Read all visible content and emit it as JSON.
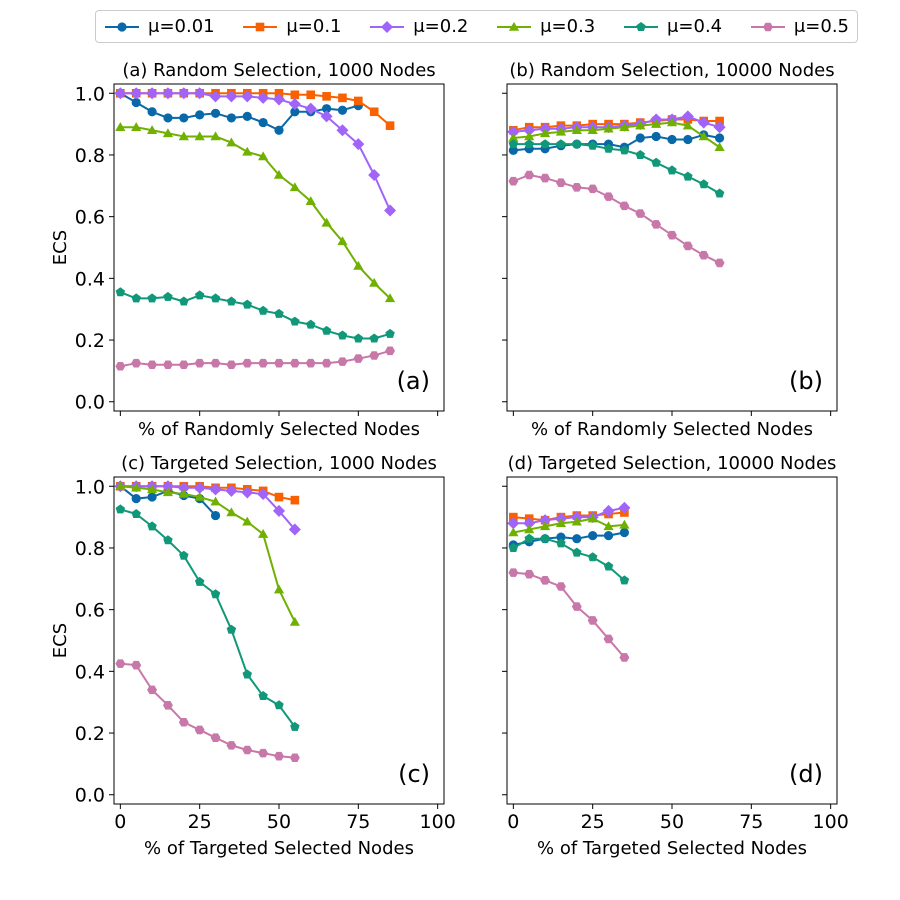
{
  "legend": [
    {
      "label": "μ=0.01",
      "color": "#0868a8",
      "marker": "circle"
    },
    {
      "label": "μ=0.1",
      "color": "#f86000",
      "marker": "square"
    },
    {
      "label": "μ=0.2",
      "color": "#a064f8",
      "marker": "diamond"
    },
    {
      "label": "μ=0.3",
      "color": "#70b000",
      "marker": "triangle"
    },
    {
      "label": "μ=0.4",
      "color": "#109878",
      "marker": "pentagon"
    },
    {
      "label": "μ=0.5",
      "color": "#c878a8",
      "marker": "hexagon"
    }
  ],
  "chart_data": [
    {
      "type": "line",
      "title": "(a) Random Selection, 1000 Nodes",
      "corner_label": "(a)",
      "xlabel": "% of Randomly Selected Nodes",
      "ylabel": "ECS",
      "xlim": [
        -2,
        102
      ],
      "ylim": [
        -0.03,
        1.03
      ],
      "xticks": [
        0,
        25,
        50,
        75,
        100
      ],
      "yticks": [
        0.0,
        0.2,
        0.4,
        0.6,
        0.8,
        1.0
      ],
      "show_xticklabels": false,
      "show_yticklabels": true,
      "series": [
        {
          "x": [
            0,
            5,
            10,
            15,
            20,
            25,
            30,
            35,
            40,
            45,
            50,
            55,
            60,
            65,
            70,
            75
          ],
          "values": [
            1.0,
            0.97,
            0.94,
            0.92,
            0.92,
            0.93,
            0.935,
            0.92,
            0.925,
            0.905,
            0.88,
            0.94,
            0.94,
            0.95,
            0.945,
            0.96
          ]
        },
        {
          "x": [
            0,
            5,
            10,
            15,
            20,
            25,
            30,
            35,
            40,
            45,
            50,
            55,
            60,
            65,
            70,
            75,
            80,
            85
          ],
          "values": [
            1.0,
            1.0,
            1.0,
            1.0,
            1.0,
            1.0,
            1.0,
            1.0,
            1.0,
            1.0,
            1.0,
            0.995,
            0.995,
            0.99,
            0.985,
            0.975,
            0.94,
            0.895
          ]
        },
        {
          "x": [
            0,
            5,
            10,
            15,
            20,
            25,
            30,
            35,
            40,
            45,
            50,
            55,
            60,
            65,
            70,
            75,
            80,
            85
          ],
          "values": [
            1.0,
            1.0,
            1.0,
            1.0,
            1.0,
            1.0,
            0.99,
            0.99,
            0.99,
            0.985,
            0.98,
            0.965,
            0.95,
            0.925,
            0.88,
            0.835,
            0.735,
            0.62
          ]
        },
        {
          "x": [
            0,
            5,
            10,
            15,
            20,
            25,
            30,
            35,
            40,
            45,
            50,
            55,
            60,
            65,
            70,
            75,
            80,
            85
          ],
          "values": [
            0.89,
            0.89,
            0.88,
            0.87,
            0.86,
            0.86,
            0.86,
            0.84,
            0.81,
            0.795,
            0.735,
            0.695,
            0.65,
            0.58,
            0.52,
            0.44,
            0.385,
            0.335
          ]
        },
        {
          "x": [
            0,
            5,
            10,
            15,
            20,
            25,
            30,
            35,
            40,
            45,
            50,
            55,
            60,
            65,
            70,
            75,
            80,
            85
          ],
          "values": [
            0.355,
            0.335,
            0.335,
            0.34,
            0.325,
            0.345,
            0.335,
            0.325,
            0.315,
            0.295,
            0.285,
            0.26,
            0.25,
            0.23,
            0.215,
            0.205,
            0.205,
            0.22
          ]
        },
        {
          "x": [
            0,
            5,
            10,
            15,
            20,
            25,
            30,
            35,
            40,
            45,
            50,
            55,
            60,
            65,
            70,
            75,
            80,
            85
          ],
          "values": [
            0.115,
            0.125,
            0.12,
            0.12,
            0.12,
            0.125,
            0.125,
            0.12,
            0.125,
            0.125,
            0.125,
            0.125,
            0.125,
            0.125,
            0.13,
            0.14,
            0.15,
            0.165
          ]
        }
      ]
    },
    {
      "type": "line",
      "title": "(b) Random Selection, 10000 Nodes",
      "corner_label": "(b)",
      "xlabel": "% of Randomly Selected Nodes",
      "ylabel": "",
      "xlim": [
        -2,
        102
      ],
      "ylim": [
        -0.03,
        1.03
      ],
      "xticks": [
        0,
        25,
        50,
        75,
        100
      ],
      "yticks": [
        0.0,
        0.2,
        0.4,
        0.6,
        0.8,
        1.0
      ],
      "show_xticklabels": false,
      "show_yticklabels": false,
      "series": [
        {
          "x": [
            0,
            5,
            10,
            15,
            20,
            25,
            30,
            35,
            40,
            45,
            50,
            55,
            60,
            65
          ],
          "values": [
            0.815,
            0.82,
            0.82,
            0.83,
            0.835,
            0.835,
            0.835,
            0.825,
            0.855,
            0.86,
            0.85,
            0.85,
            0.865,
            0.855
          ]
        },
        {
          "x": [
            0,
            5,
            10,
            15,
            20,
            25,
            30,
            35,
            40,
            45,
            50,
            55,
            60,
            65
          ],
          "values": [
            0.88,
            0.89,
            0.89,
            0.895,
            0.895,
            0.9,
            0.9,
            0.9,
            0.905,
            0.91,
            0.915,
            0.915,
            0.91,
            0.91
          ]
        },
        {
          "x": [
            0,
            5,
            10,
            15,
            20,
            25,
            30,
            35,
            40,
            45,
            50,
            55,
            60,
            65
          ],
          "values": [
            0.875,
            0.88,
            0.885,
            0.885,
            0.89,
            0.89,
            0.89,
            0.895,
            0.9,
            0.915,
            0.915,
            0.925,
            0.905,
            0.89
          ]
        },
        {
          "x": [
            0,
            5,
            10,
            15,
            20,
            25,
            30,
            35,
            40,
            45,
            50,
            55,
            60,
            65
          ],
          "values": [
            0.855,
            0.86,
            0.87,
            0.875,
            0.88,
            0.88,
            0.885,
            0.89,
            0.895,
            0.9,
            0.905,
            0.895,
            0.86,
            0.825
          ]
        },
        {
          "x": [
            0,
            5,
            10,
            15,
            20,
            25,
            30,
            35,
            40,
            45,
            50,
            55,
            60,
            65
          ],
          "values": [
            0.835,
            0.835,
            0.835,
            0.835,
            0.835,
            0.83,
            0.82,
            0.815,
            0.8,
            0.775,
            0.75,
            0.73,
            0.705,
            0.675
          ]
        },
        {
          "x": [
            0,
            5,
            10,
            15,
            20,
            25,
            30,
            35,
            40,
            45,
            50,
            55,
            60,
            65
          ],
          "values": [
            0.715,
            0.735,
            0.725,
            0.71,
            0.695,
            0.69,
            0.665,
            0.635,
            0.61,
            0.575,
            0.54,
            0.505,
            0.475,
            0.45
          ]
        }
      ]
    },
    {
      "type": "line",
      "title": "(c) Targeted Selection, 1000 Nodes",
      "corner_label": "(c)",
      "xlabel": "% of Targeted Selected Nodes",
      "ylabel": "ECS",
      "xlim": [
        -2,
        102
      ],
      "ylim": [
        -0.03,
        1.03
      ],
      "xticks": [
        0,
        25,
        50,
        75,
        100
      ],
      "yticks": [
        0.0,
        0.2,
        0.4,
        0.6,
        0.8,
        1.0
      ],
      "show_xticklabels": true,
      "show_yticklabels": true,
      "series": [
        {
          "x": [
            0,
            5,
            10,
            15,
            20,
            25,
            30
          ],
          "values": [
            1.0,
            0.96,
            0.965,
            0.985,
            0.97,
            0.96,
            0.905
          ]
        },
        {
          "x": [
            0,
            5,
            10,
            15,
            20,
            25,
            30,
            35,
            40,
            45,
            50,
            55
          ],
          "values": [
            1.0,
            1.0,
            1.0,
            1.0,
            1.0,
            1.0,
            0.995,
            0.995,
            0.99,
            0.985,
            0.965,
            0.955
          ]
        },
        {
          "x": [
            0,
            5,
            10,
            15,
            20,
            25,
            30,
            35,
            40,
            45,
            50,
            55
          ],
          "values": [
            1.0,
            1.0,
            1.0,
            1.0,
            0.995,
            0.995,
            0.99,
            0.985,
            0.98,
            0.975,
            0.92,
            0.86
          ]
        },
        {
          "x": [
            0,
            5,
            10,
            15,
            20,
            25,
            30,
            35,
            40,
            45,
            50,
            55
          ],
          "values": [
            1.0,
            0.995,
            0.99,
            0.98,
            0.975,
            0.965,
            0.95,
            0.915,
            0.885,
            0.845,
            0.665,
            0.56
          ]
        },
        {
          "x": [
            0,
            5,
            10,
            15,
            20,
            25,
            30,
            35,
            40,
            45,
            50,
            55
          ],
          "values": [
            0.925,
            0.91,
            0.87,
            0.825,
            0.775,
            0.69,
            0.65,
            0.535,
            0.39,
            0.32,
            0.29,
            0.22
          ]
        },
        {
          "x": [
            0,
            5,
            10,
            15,
            20,
            25,
            30,
            35,
            40,
            45,
            50,
            55
          ],
          "values": [
            0.425,
            0.42,
            0.34,
            0.29,
            0.235,
            0.21,
            0.185,
            0.16,
            0.145,
            0.135,
            0.125,
            0.12
          ]
        }
      ]
    },
    {
      "type": "line",
      "title": "(d) Targeted Selection, 10000 Nodes",
      "corner_label": "(d)",
      "xlabel": "% of Targeted Selected Nodes",
      "ylabel": "",
      "xlim": [
        -2,
        102
      ],
      "ylim": [
        -0.03,
        1.03
      ],
      "xticks": [
        0,
        25,
        50,
        75,
        100
      ],
      "yticks": [
        0.0,
        0.2,
        0.4,
        0.6,
        0.8,
        1.0
      ],
      "show_xticklabels": true,
      "show_yticklabels": false,
      "series": [
        {
          "x": [
            0,
            5,
            10,
            15,
            20,
            25,
            30,
            35
          ],
          "values": [
            0.81,
            0.82,
            0.83,
            0.835,
            0.83,
            0.84,
            0.84,
            0.85
          ]
        },
        {
          "x": [
            0,
            5,
            10,
            15,
            20,
            25,
            30,
            35
          ],
          "values": [
            0.9,
            0.895,
            0.89,
            0.9,
            0.905,
            0.905,
            0.91,
            0.915
          ]
        },
        {
          "x": [
            0,
            5,
            10,
            15,
            20,
            25,
            30,
            35
          ],
          "values": [
            0.88,
            0.88,
            0.89,
            0.895,
            0.9,
            0.9,
            0.92,
            0.93
          ]
        },
        {
          "x": [
            0,
            5,
            10,
            15,
            20,
            25,
            30,
            35
          ],
          "values": [
            0.85,
            0.86,
            0.87,
            0.88,
            0.885,
            0.895,
            0.87,
            0.875
          ]
        },
        {
          "x": [
            0,
            5,
            10,
            15,
            20,
            25,
            30,
            35
          ],
          "values": [
            0.8,
            0.83,
            0.83,
            0.815,
            0.785,
            0.77,
            0.74,
            0.695
          ]
        },
        {
          "x": [
            0,
            5,
            10,
            15,
            20,
            25,
            30,
            35
          ],
          "values": [
            0.72,
            0.715,
            0.695,
            0.675,
            0.61,
            0.565,
            0.505,
            0.445
          ]
        }
      ]
    }
  ]
}
